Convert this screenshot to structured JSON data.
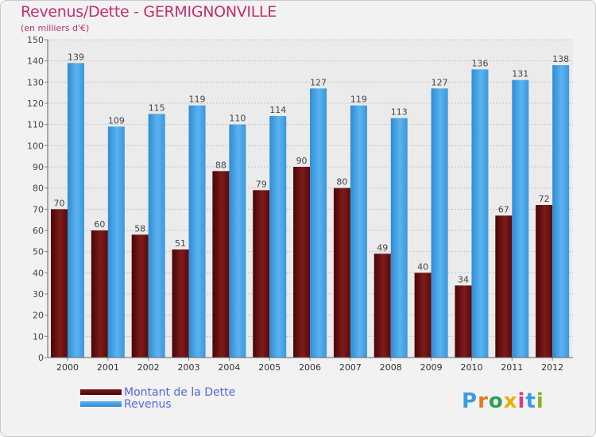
{
  "title": "Revenus/Dette - GERMIGNONVILLE",
  "subtitle": "(en milliers d'€)",
  "chart_data": {
    "type": "bar",
    "title": "Revenus/Dette - GERMIGNONVILLE",
    "ylabel": "(en milliers d'€)",
    "categories": [
      "2000",
      "2001",
      "2002",
      "2003",
      "2004",
      "2005",
      "2006",
      "2007",
      "2008",
      "2009",
      "2010",
      "2011",
      "2012"
    ],
    "series": [
      {
        "name": "Montant de la Dette",
        "color": "#6b1212",
        "values": [
          70,
          60,
          58,
          51,
          88,
          79,
          90,
          80,
          49,
          40,
          34,
          67,
          72
        ]
      },
      {
        "name": "Revenus",
        "color": "#3f9fe0",
        "values": [
          139,
          109,
          115,
          119,
          110,
          114,
          127,
          119,
          113,
          127,
          136,
          131,
          138
        ]
      }
    ],
    "ylim": [
      0,
      150
    ],
    "yticks": [
      0,
      10,
      20,
      30,
      40,
      50,
      60,
      70,
      80,
      90,
      100,
      110,
      120,
      130,
      140,
      150
    ],
    "grid": true
  },
  "legend": {
    "debt_label": "Montant de la Dette",
    "revenue_label": "Revenus"
  },
  "logo_text": "Proxiti"
}
